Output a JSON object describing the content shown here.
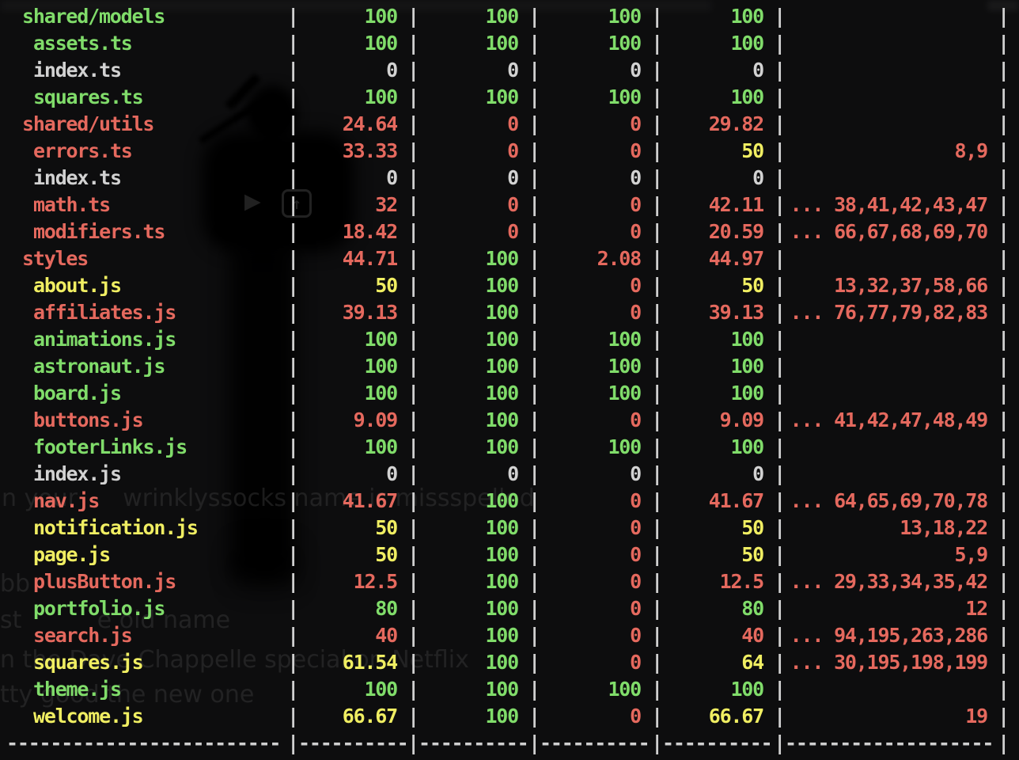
{
  "colors": {
    "green": "#80dc6a",
    "red": "#e5695e",
    "yellow": "#f0ee62",
    "gray": "#d2d2d2",
    "foreground": "#cfcfcf",
    "background": "#0d0d0e"
  },
  "table": {
    "pipe": "|",
    "separator": {
      "file_dashes": "-------------------------",
      "num_dashes": "----------",
      "unc_dashes": "-------------------"
    },
    "rows": [
      {
        "name": "shared/models",
        "indent": "dir",
        "name_color": "green",
        "cells": [
          {
            "v": "100",
            "c": "green"
          },
          {
            "v": "100",
            "c": "green"
          },
          {
            "v": "100",
            "c": "green"
          },
          {
            "v": "100",
            "c": "green"
          }
        ],
        "uncovered": {
          "v": "",
          "c": "red"
        }
      },
      {
        "name": "assets.ts",
        "indent": "file",
        "name_color": "green",
        "cells": [
          {
            "v": "100",
            "c": "green"
          },
          {
            "v": "100",
            "c": "green"
          },
          {
            "v": "100",
            "c": "green"
          },
          {
            "v": "100",
            "c": "green"
          }
        ],
        "uncovered": {
          "v": "",
          "c": "red"
        }
      },
      {
        "name": "index.ts",
        "indent": "file",
        "name_color": "gray",
        "cells": [
          {
            "v": "0",
            "c": "gray"
          },
          {
            "v": "0",
            "c": "gray"
          },
          {
            "v": "0",
            "c": "gray"
          },
          {
            "v": "0",
            "c": "gray"
          }
        ],
        "uncovered": {
          "v": "",
          "c": "red"
        }
      },
      {
        "name": "squares.ts",
        "indent": "file",
        "name_color": "green",
        "cells": [
          {
            "v": "100",
            "c": "green"
          },
          {
            "v": "100",
            "c": "green"
          },
          {
            "v": "100",
            "c": "green"
          },
          {
            "v": "100",
            "c": "green"
          }
        ],
        "uncovered": {
          "v": "",
          "c": "red"
        }
      },
      {
        "name": "shared/utils",
        "indent": "dir",
        "name_color": "red",
        "cells": [
          {
            "v": "24.64",
            "c": "red"
          },
          {
            "v": "0",
            "c": "red"
          },
          {
            "v": "0",
            "c": "red"
          },
          {
            "v": "29.82",
            "c": "red"
          }
        ],
        "uncovered": {
          "v": "",
          "c": "red"
        }
      },
      {
        "name": "errors.ts",
        "indent": "file",
        "name_color": "red",
        "cells": [
          {
            "v": "33.33",
            "c": "red"
          },
          {
            "v": "0",
            "c": "red"
          },
          {
            "v": "0",
            "c": "red"
          },
          {
            "v": "50",
            "c": "yellow"
          }
        ],
        "uncovered": {
          "v": "8,9",
          "c": "red"
        }
      },
      {
        "name": "index.ts",
        "indent": "file",
        "name_color": "gray",
        "cells": [
          {
            "v": "0",
            "c": "gray"
          },
          {
            "v": "0",
            "c": "gray"
          },
          {
            "v": "0",
            "c": "gray"
          },
          {
            "v": "0",
            "c": "gray"
          }
        ],
        "uncovered": {
          "v": "",
          "c": "red"
        }
      },
      {
        "name": "math.ts",
        "indent": "file",
        "name_color": "red",
        "cells": [
          {
            "v": "32",
            "c": "red"
          },
          {
            "v": "0",
            "c": "red"
          },
          {
            "v": "0",
            "c": "red"
          },
          {
            "v": "42.11",
            "c": "red"
          }
        ],
        "uncovered": {
          "v": "... 38,41,42,43,47",
          "c": "red"
        }
      },
      {
        "name": "modifiers.ts",
        "indent": "file",
        "name_color": "red",
        "cells": [
          {
            "v": "18.42",
            "c": "red"
          },
          {
            "v": "0",
            "c": "red"
          },
          {
            "v": "0",
            "c": "red"
          },
          {
            "v": "20.59",
            "c": "red"
          }
        ],
        "uncovered": {
          "v": "... 66,67,68,69,70",
          "c": "red"
        }
      },
      {
        "name": "styles",
        "indent": "dir",
        "name_color": "red",
        "cells": [
          {
            "v": "44.71",
            "c": "red"
          },
          {
            "v": "100",
            "c": "green"
          },
          {
            "v": "2.08",
            "c": "red"
          },
          {
            "v": "44.97",
            "c": "red"
          }
        ],
        "uncovered": {
          "v": "",
          "c": "red"
        }
      },
      {
        "name": "about.js",
        "indent": "file",
        "name_color": "yellow",
        "cells": [
          {
            "v": "50",
            "c": "yellow"
          },
          {
            "v": "100",
            "c": "green"
          },
          {
            "v": "0",
            "c": "red"
          },
          {
            "v": "50",
            "c": "yellow"
          }
        ],
        "uncovered": {
          "v": "13,32,37,58,66",
          "c": "red"
        }
      },
      {
        "name": "affiliates.js",
        "indent": "file",
        "name_color": "red",
        "cells": [
          {
            "v": "39.13",
            "c": "red"
          },
          {
            "v": "100",
            "c": "green"
          },
          {
            "v": "0",
            "c": "red"
          },
          {
            "v": "39.13",
            "c": "red"
          }
        ],
        "uncovered": {
          "v": "... 76,77,79,82,83",
          "c": "red"
        }
      },
      {
        "name": "animations.js",
        "indent": "file",
        "name_color": "green",
        "cells": [
          {
            "v": "100",
            "c": "green"
          },
          {
            "v": "100",
            "c": "green"
          },
          {
            "v": "100",
            "c": "green"
          },
          {
            "v": "100",
            "c": "green"
          }
        ],
        "uncovered": {
          "v": "",
          "c": "red"
        }
      },
      {
        "name": "astronaut.js",
        "indent": "file",
        "name_color": "green",
        "cells": [
          {
            "v": "100",
            "c": "green"
          },
          {
            "v": "100",
            "c": "green"
          },
          {
            "v": "100",
            "c": "green"
          },
          {
            "v": "100",
            "c": "green"
          }
        ],
        "uncovered": {
          "v": "",
          "c": "red"
        }
      },
      {
        "name": "board.js",
        "indent": "file",
        "name_color": "green",
        "cells": [
          {
            "v": "100",
            "c": "green"
          },
          {
            "v": "100",
            "c": "green"
          },
          {
            "v": "100",
            "c": "green"
          },
          {
            "v": "100",
            "c": "green"
          }
        ],
        "uncovered": {
          "v": "",
          "c": "red"
        }
      },
      {
        "name": "buttons.js",
        "indent": "file",
        "name_color": "red",
        "cells": [
          {
            "v": "9.09",
            "c": "red"
          },
          {
            "v": "100",
            "c": "green"
          },
          {
            "v": "0",
            "c": "red"
          },
          {
            "v": "9.09",
            "c": "red"
          }
        ],
        "uncovered": {
          "v": "... 41,42,47,48,49",
          "c": "red"
        }
      },
      {
        "name": "footerLinks.js",
        "indent": "file",
        "name_color": "green",
        "cells": [
          {
            "v": "100",
            "c": "green"
          },
          {
            "v": "100",
            "c": "green"
          },
          {
            "v": "100",
            "c": "green"
          },
          {
            "v": "100",
            "c": "green"
          }
        ],
        "uncovered": {
          "v": "",
          "c": "red"
        }
      },
      {
        "name": "index.js",
        "indent": "file",
        "name_color": "gray",
        "cells": [
          {
            "v": "0",
            "c": "gray"
          },
          {
            "v": "0",
            "c": "gray"
          },
          {
            "v": "0",
            "c": "gray"
          },
          {
            "v": "0",
            "c": "gray"
          }
        ],
        "uncovered": {
          "v": "",
          "c": "red"
        }
      },
      {
        "name": "nav.js",
        "indent": "file",
        "name_color": "red",
        "cells": [
          {
            "v": "41.67",
            "c": "red"
          },
          {
            "v": "100",
            "c": "green"
          },
          {
            "v": "0",
            "c": "red"
          },
          {
            "v": "41.67",
            "c": "red"
          }
        ],
        "uncovered": {
          "v": "... 64,65,69,70,78",
          "c": "red"
        }
      },
      {
        "name": "notification.js",
        "indent": "file",
        "name_color": "yellow",
        "cells": [
          {
            "v": "50",
            "c": "yellow"
          },
          {
            "v": "100",
            "c": "green"
          },
          {
            "v": "0",
            "c": "red"
          },
          {
            "v": "50",
            "c": "yellow"
          }
        ],
        "uncovered": {
          "v": "13,18,22",
          "c": "red"
        }
      },
      {
        "name": "page.js",
        "indent": "file",
        "name_color": "yellow",
        "cells": [
          {
            "v": "50",
            "c": "yellow"
          },
          {
            "v": "100",
            "c": "green"
          },
          {
            "v": "0",
            "c": "red"
          },
          {
            "v": "50",
            "c": "yellow"
          }
        ],
        "uncovered": {
          "v": "5,9",
          "c": "red"
        }
      },
      {
        "name": "plusButton.js",
        "indent": "file",
        "name_color": "red",
        "cells": [
          {
            "v": "12.5",
            "c": "red"
          },
          {
            "v": "100",
            "c": "green"
          },
          {
            "v": "0",
            "c": "red"
          },
          {
            "v": "12.5",
            "c": "red"
          }
        ],
        "uncovered": {
          "v": "... 29,33,34,35,42",
          "c": "red"
        }
      },
      {
        "name": "portfolio.js",
        "indent": "file",
        "name_color": "green",
        "cells": [
          {
            "v": "80",
            "c": "green"
          },
          {
            "v": "100",
            "c": "green"
          },
          {
            "v": "0",
            "c": "red"
          },
          {
            "v": "80",
            "c": "green"
          }
        ],
        "uncovered": {
          "v": "12",
          "c": "red"
        }
      },
      {
        "name": "search.js",
        "indent": "file",
        "name_color": "red",
        "cells": [
          {
            "v": "40",
            "c": "red"
          },
          {
            "v": "100",
            "c": "green"
          },
          {
            "v": "0",
            "c": "red"
          },
          {
            "v": "40",
            "c": "red"
          }
        ],
        "uncovered": {
          "v": "... 94,195,263,286",
          "c": "red"
        }
      },
      {
        "name": "squares.js",
        "indent": "file",
        "name_color": "yellow",
        "cells": [
          {
            "v": "61.54",
            "c": "yellow"
          },
          {
            "v": "100",
            "c": "green"
          },
          {
            "v": "0",
            "c": "red"
          },
          {
            "v": "64",
            "c": "yellow"
          }
        ],
        "uncovered": {
          "v": "... 30,195,198,199",
          "c": "red"
        }
      },
      {
        "name": "theme.js",
        "indent": "file",
        "name_color": "green",
        "cells": [
          {
            "v": "100",
            "c": "green"
          },
          {
            "v": "100",
            "c": "green"
          },
          {
            "v": "100",
            "c": "green"
          },
          {
            "v": "100",
            "c": "green"
          }
        ],
        "uncovered": {
          "v": "",
          "c": "red"
        }
      },
      {
        "name": "welcome.js",
        "indent": "file",
        "name_color": "yellow",
        "cells": [
          {
            "v": "66.67",
            "c": "yellow"
          },
          {
            "v": "100",
            "c": "green"
          },
          {
            "v": "0",
            "c": "red"
          },
          {
            "v": "66.67",
            "c": "yellow"
          }
        ],
        "uncovered": {
          "v": "19",
          "c": "red"
        }
      }
    ]
  },
  "background": {
    "icons": {
      "play": "▶",
      "upload_arrow": "↑"
    },
    "watermarks": [
      "n your      wrinklyssocks name is missspelled",
      "bb",
      "st          e old name",
      "n the Dave Chappelle special on Netflix",
      "tty good the new one"
    ]
  }
}
